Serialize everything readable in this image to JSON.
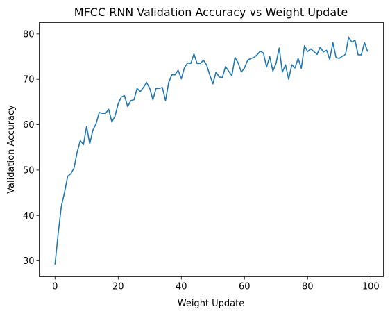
{
  "chart_data": {
    "type": "line",
    "title": "MFCC RNN Validation Accuracy vs Weight Update",
    "xlabel": "Weight Update",
    "ylabel": "Validation Accuracy",
    "xlim": [
      -5,
      104
    ],
    "ylim": [
      26.5,
      82.5
    ],
    "xticks": [
      0,
      20,
      40,
      60,
      80,
      100
    ],
    "yticks": [
      30,
      40,
      50,
      60,
      70,
      80
    ],
    "grid": false,
    "series": [
      {
        "color": "#1f77b4",
        "x": [
          0,
          1,
          2,
          3,
          4,
          5,
          6,
          7,
          8,
          9,
          10,
          11,
          12,
          13,
          14,
          15,
          16,
          17,
          18,
          19,
          20,
          21,
          22,
          23,
          24,
          25,
          26,
          27,
          28,
          29,
          30,
          31,
          32,
          33,
          34,
          35,
          36,
          37,
          38,
          39,
          40,
          41,
          42,
          43,
          44,
          45,
          46,
          47,
          48,
          49,
          50,
          51,
          52,
          53,
          54,
          55,
          56,
          57,
          58,
          59,
          60,
          61,
          62,
          63,
          64,
          65,
          66,
          67,
          68,
          69,
          70,
          71,
          72,
          73,
          74,
          75,
          76,
          77,
          78,
          79,
          80,
          81,
          82,
          83,
          84,
          85,
          86,
          87,
          88,
          89,
          90,
          91,
          92,
          93,
          94,
          95,
          96,
          97,
          98,
          99
        ],
        "values": [
          29.2,
          36.0,
          42.0,
          45.0,
          48.6,
          49.2,
          50.4,
          53.9,
          56.5,
          55.6,
          59.6,
          55.8,
          58.8,
          60.2,
          62.7,
          62.5,
          62.5,
          63.4,
          60.6,
          61.9,
          64.6,
          66.1,
          66.4,
          64.0,
          65.3,
          65.5,
          68.0,
          67.3,
          68.2,
          69.3,
          68.0,
          65.5,
          68.0,
          68.0,
          68.2,
          65.3,
          69.3,
          71.0,
          71.0,
          72.0,
          70.1,
          72.6,
          73.6,
          73.5,
          75.6,
          73.5,
          73.5,
          74.2,
          73.2,
          71.0,
          69.0,
          71.6,
          70.5,
          70.4,
          72.8,
          71.8,
          70.8,
          74.8,
          73.6,
          71.6,
          72.5,
          74.2,
          74.6,
          74.8,
          75.4,
          76.2,
          75.8,
          72.7,
          75.0,
          71.8,
          73.5,
          76.9,
          71.6,
          73.2,
          70.0,
          73.2,
          72.5,
          74.6,
          72.4,
          77.4,
          76.1,
          76.7,
          76.1,
          75.5,
          77.1,
          76.0,
          76.4,
          74.4,
          78.1,
          74.8,
          74.6,
          75.1,
          75.5,
          79.3,
          78.2,
          78.6,
          75.4,
          75.4,
          78.1,
          76.1
        ]
      }
    ]
  }
}
